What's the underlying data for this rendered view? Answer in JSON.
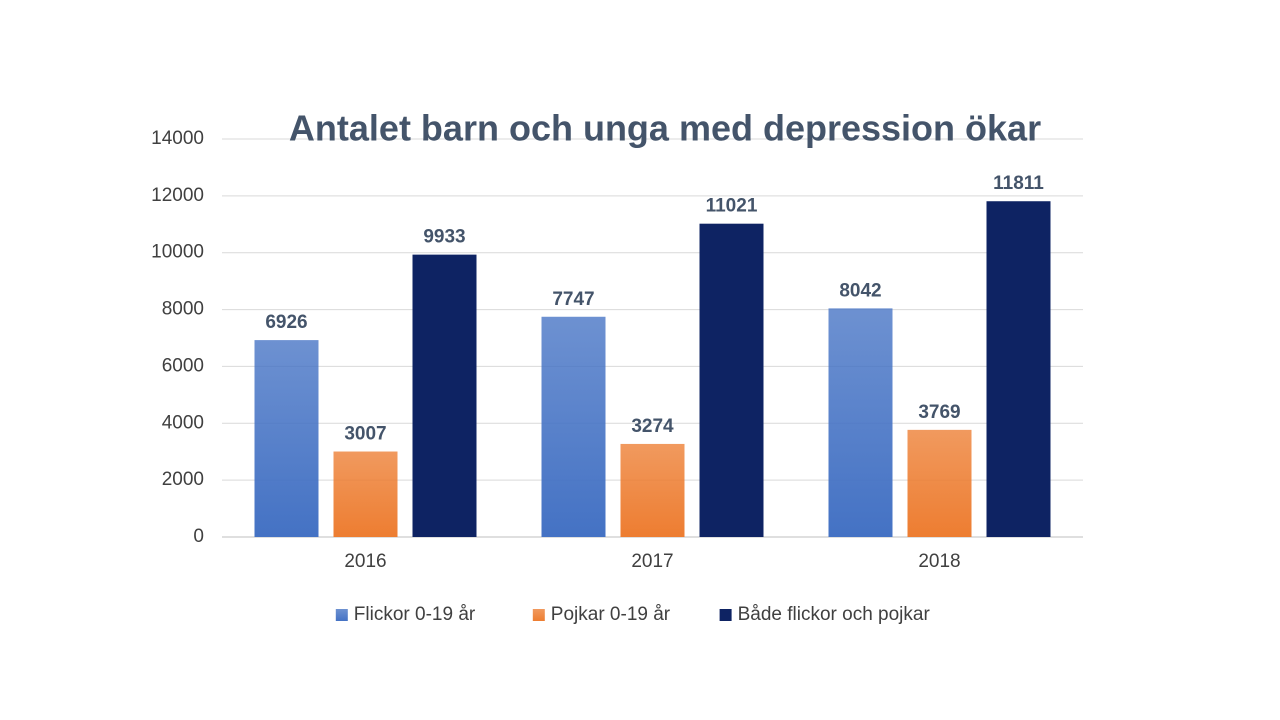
{
  "chart_data": {
    "type": "bar",
    "title": "Antalet barn och unga med depression ökar",
    "categories": [
      "2016",
      "2017",
      "2018"
    ],
    "series": [
      {
        "name": "Flickor 0-19 år",
        "color": "#4472c4",
        "values": [
          6926,
          7747,
          8042
        ]
      },
      {
        "name": "Pojkar 0-19 år",
        "color": "#ed7d31",
        "values": [
          3007,
          3274,
          3769
        ]
      },
      {
        "name": "Både flickor och pojkar",
        "color": "#0e2363",
        "values": [
          9933,
          11021,
          11811
        ]
      }
    ],
    "ylim": [
      0,
      14000
    ],
    "yticks": [
      0,
      2000,
      4000,
      6000,
      8000,
      10000,
      12000,
      14000
    ],
    "grid": true,
    "legend": "bottom"
  }
}
